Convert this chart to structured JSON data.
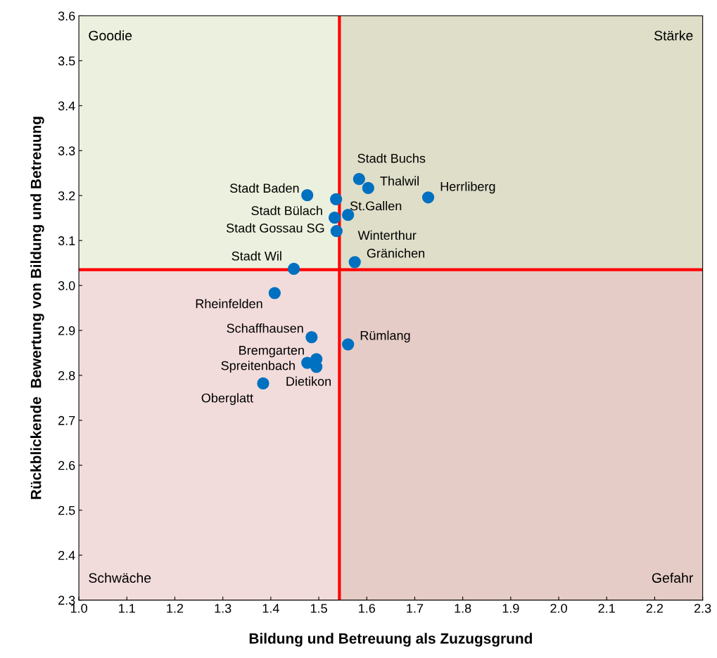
{
  "chart_data": {
    "type": "scatter",
    "xlabel": "Bildung und Betreuung als Zuzugsgrund",
    "ylabel": "Rückblickende  Bewertung von Bildung und Betreuung",
    "xlim": [
      1.0,
      2.3
    ],
    "xticks": [
      {
        "value": 1.0,
        "label": "1.0"
      },
      1.1,
      1.2,
      1.3,
      1.4,
      1.5,
      1.6,
      1.7,
      1.8,
      1.9,
      {
        "value": 2.0,
        "label": "2.0"
      },
      2.1,
      2.2,
      2.3
    ],
    "ylim": [
      2.3,
      3.6
    ],
    "yticks": [
      2.3,
      2.4,
      2.5,
      2.6,
      2.7,
      2.8,
      2.9,
      {
        "value": 3.0,
        "label": "3.0"
      },
      3.1,
      3.2,
      3.3,
      3.4,
      3.5,
      3.6
    ],
    "grid": false,
    "legend": false,
    "marker": "circle",
    "series": [
      {
        "color": "#0070c0",
        "x": [
          1.476,
          1.536,
          1.533,
          1.561,
          1.537,
          1.575,
          1.448,
          1.408,
          1.485,
          1.561,
          1.495,
          1.476,
          1.495,
          1.384,
          1.584,
          1.603,
          1.728
        ],
        "values": [
          3.201,
          3.192,
          3.151,
          3.157,
          3.121,
          3.052,
          3.037,
          2.983,
          2.885,
          2.869,
          2.836,
          2.828,
          2.819,
          2.782,
          3.237,
          3.217,
          3.196
        ]
      }
    ],
    "annotations": [
      {
        "text": "Stadt Baden",
        "x": 1.476,
        "y": 3.201
      },
      {
        "text": "St.Gallen",
        "x": 1.536,
        "y": 3.192
      },
      {
        "text": "Stadt Bülach",
        "x": 1.533,
        "y": 3.151
      },
      {
        "text": "Winterthur",
        "x": 1.561,
        "y": 3.157
      },
      {
        "text": "Stadt Gossau SG",
        "x": 1.537,
        "y": 3.121
      },
      {
        "text": "Gränichen",
        "x": 1.575,
        "y": 3.052
      },
      {
        "text": "Stadt Wil",
        "x": 1.448,
        "y": 3.037
      },
      {
        "text": "Rheinfelden",
        "x": 1.408,
        "y": 2.983
      },
      {
        "text": "Schaffhausen",
        "x": 1.485,
        "y": 2.885
      },
      {
        "text": "Rümlang",
        "x": 1.561,
        "y": 2.869
      },
      {
        "text": "Bremgarten",
        "x": 1.495,
        "y": 2.836
      },
      {
        "text": "Spreitenbach",
        "x": 1.476,
        "y": 2.828
      },
      {
        "text": "Dietikon",
        "x": 1.495,
        "y": 2.819
      },
      {
        "text": "Oberglatt",
        "x": 1.384,
        "y": 2.782
      },
      {
        "text": "Stadt Buchs",
        "x": 1.584,
        "y": 3.237
      },
      {
        "text": "Thalwil",
        "x": 1.603,
        "y": 3.217
      },
      {
        "text": "Herrliberg",
        "x": 1.728,
        "y": 3.196
      },
      "Goodie",
      "Stärke",
      "Schwäche",
      "Gefahr"
    ],
    "ref_lines": [
      {
        "axis": "x",
        "value": 1.543,
        "color": "#ff0000"
      },
      {
        "axis": "y",
        "value": 3.035,
        "color": "#ff0000"
      }
    ],
    "bands": [
      {
        "axis": "y",
        "from": 3.035,
        "to": 3.6,
        "color": "#ebf1de"
      },
      {
        "axis": "y",
        "from": 2.3,
        "to": 3.035,
        "color": "#f2dcdb"
      },
      {
        "axis": "x",
        "from": 1.543,
        "to": 2.3,
        "color": "#8a5a30"
      }
    ]
  }
}
